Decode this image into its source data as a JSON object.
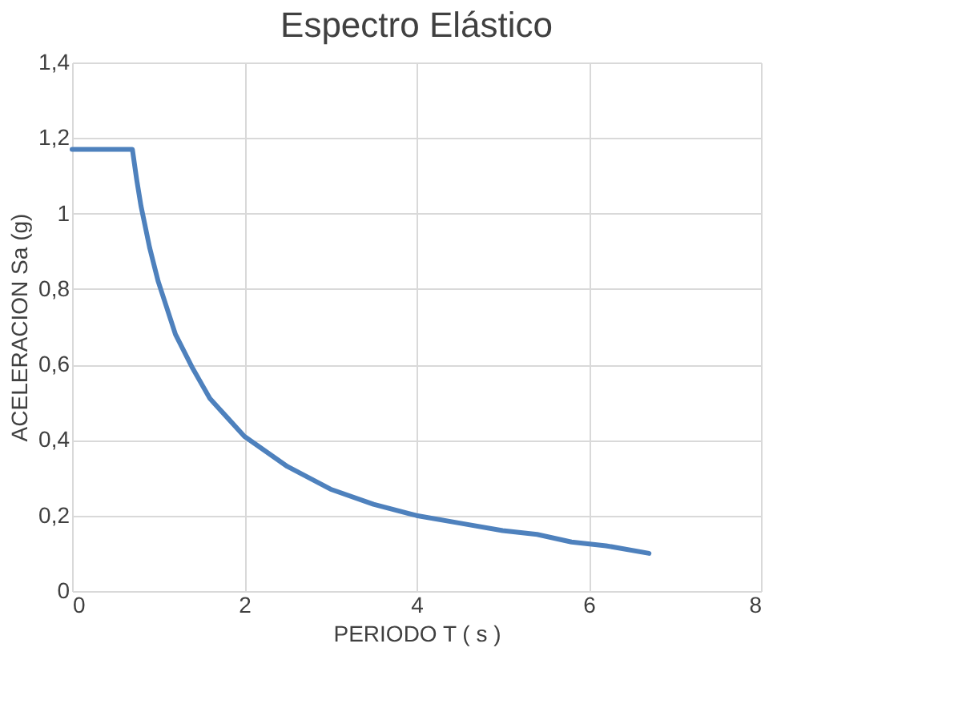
{
  "chart_data": {
    "type": "line",
    "title": "Espectro Elástico",
    "xlabel": "PERIODO T ( s )",
    "ylabel": "ACELERACION Sa (g)",
    "x": [
      0,
      0.7,
      0.75,
      0.8,
      0.9,
      1.0,
      1.1,
      1.2,
      1.4,
      1.6,
      1.8,
      2,
      2.5,
      3,
      3.5,
      4,
      4.5,
      5,
      5.4,
      5.8,
      6.2,
      6.7
    ],
    "series": [
      {
        "color": "#4e81bd",
        "values": [
          1.17,
          1.17,
          1.09,
          1.02,
          0.91,
          0.82,
          0.75,
          0.68,
          0.59,
          0.51,
          0.46,
          0.41,
          0.33,
          0.27,
          0.23,
          0.2,
          0.18,
          0.16,
          0.15,
          0.13,
          0.12,
          0.1
        ]
      }
    ],
    "xlim": [
      0,
      8
    ],
    "xticks": [
      0,
      2,
      4,
      6,
      8
    ],
    "ylim": [
      0,
      1.4
    ],
    "yticks": [
      0,
      {
        "value": 0.2,
        "label": "0,2"
      },
      {
        "value": 0.4,
        "label": "0,4"
      },
      {
        "value": 0.6,
        "label": "0,6"
      },
      {
        "value": 0.8,
        "label": "0,8"
      },
      1,
      {
        "value": 1.2,
        "label": "1,2"
      },
      {
        "value": 1.4,
        "label": "1,4"
      }
    ],
    "grid": true,
    "marker": "none",
    "line_style": "solid"
  }
}
